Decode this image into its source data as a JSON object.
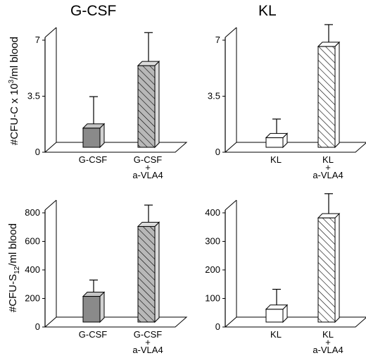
{
  "titles": {
    "left": "G-CSF",
    "right": "KL"
  },
  "ylabels": {
    "top": {
      "pre": "#CFU-C x 10",
      "sup": "3",
      "post": "/ml blood"
    },
    "bottom": {
      "pre": "#CFU-S",
      "sub": "12",
      "post": "/ml blood"
    }
  },
  "colors": {
    "gray_fill": "#8a8a8a",
    "hatch_gray": "#b8b8b8",
    "white_fill": "#ffffff",
    "line": "#000000"
  },
  "chart_data": [
    {
      "type": "bar",
      "panel": "top-left",
      "categories": [
        [
          "G-CSF"
        ],
        [
          "G-CSF",
          "+",
          "a-VLA4"
        ]
      ],
      "values": [
        1.2,
        5.1
      ],
      "errors": [
        1.7,
        1.8
      ],
      "fills": [
        "solid-gray",
        "hatched-gray"
      ],
      "ylim": [
        0,
        7
      ],
      "yticks": [
        0,
        3.5,
        7
      ]
    },
    {
      "type": "bar",
      "panel": "top-right",
      "categories": [
        [
          "KL"
        ],
        [
          "KL",
          "+",
          "a-VLA4"
        ]
      ],
      "values": [
        0.6,
        6.3
      ],
      "errors": [
        0.9,
        1.1
      ],
      "fills": [
        "white",
        "hatched-white"
      ],
      "ylim": [
        0,
        7
      ],
      "yticks": [
        0,
        3.5,
        7
      ]
    },
    {
      "type": "bar",
      "panel": "bottom-left",
      "categories": [
        [
          "G-CSF"
        ],
        [
          "G-CSF",
          "+",
          "a-VLA4"
        ]
      ],
      "values": [
        180,
        670
      ],
      "errors": [
        85,
        120
      ],
      "fills": [
        "solid-gray",
        "hatched-gray"
      ],
      "ylim": [
        0,
        800
      ],
      "yticks": [
        0,
        200,
        400,
        600,
        800
      ]
    },
    {
      "type": "bar",
      "panel": "bottom-right",
      "categories": [
        [
          "KL"
        ],
        [
          "KL",
          "+",
          "a-VLA4"
        ]
      ],
      "values": [
        45,
        365
      ],
      "errors": [
        55,
        70
      ],
      "fills": [
        "white",
        "hatched-white"
      ],
      "ylim": [
        0,
        400
      ],
      "yticks": [
        0,
        100,
        200,
        300,
        400
      ]
    }
  ]
}
